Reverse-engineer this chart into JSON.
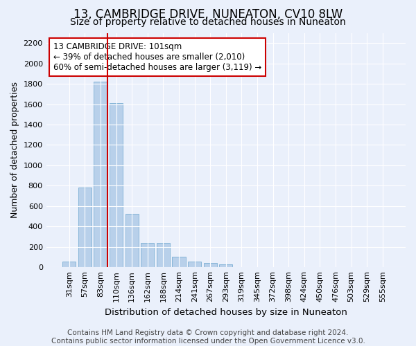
{
  "title": "13, CAMBRIDGE DRIVE, NUNEATON, CV10 8LW",
  "subtitle": "Size of property relative to detached houses in Nuneaton",
  "xlabel": "Distribution of detached houses by size in Nuneaton",
  "ylabel": "Number of detached properties",
  "categories": [
    "31sqm",
    "57sqm",
    "83sqm",
    "110sqm",
    "136sqm",
    "162sqm",
    "188sqm",
    "214sqm",
    "241sqm",
    "267sqm",
    "293sqm",
    "319sqm",
    "345sqm",
    "372sqm",
    "398sqm",
    "424sqm",
    "450sqm",
    "476sqm",
    "503sqm",
    "529sqm",
    "555sqm"
  ],
  "values": [
    55,
    780,
    1820,
    1610,
    525,
    240,
    240,
    105,
    55,
    40,
    25,
    0,
    0,
    0,
    0,
    0,
    0,
    0,
    0,
    0,
    0
  ],
  "bar_color": "#b8d0ea",
  "bar_edge_color": "#7aafd4",
  "vline_color": "#cc0000",
  "annotation_text": "13 CAMBRIDGE DRIVE: 101sqm\n← 39% of detached houses are smaller (2,010)\n60% of semi-detached houses are larger (3,119) →",
  "annotation_box_color": "#ffffff",
  "annotation_box_edge_color": "#cc0000",
  "ylim": [
    0,
    2300
  ],
  "yticks": [
    0,
    200,
    400,
    600,
    800,
    1000,
    1200,
    1400,
    1600,
    1800,
    2000,
    2200
  ],
  "footer_line1": "Contains HM Land Registry data © Crown copyright and database right 2024.",
  "footer_line2": "Contains public sector information licensed under the Open Government Licence v3.0.",
  "bg_color": "#eaf0fb",
  "plot_bg_color": "#eaf0fb",
  "grid_color": "#ffffff",
  "title_fontsize": 12,
  "subtitle_fontsize": 10,
  "xlabel_fontsize": 9.5,
  "ylabel_fontsize": 9,
  "tick_fontsize": 8,
  "annotation_fontsize": 8.5,
  "footer_fontsize": 7.5
}
